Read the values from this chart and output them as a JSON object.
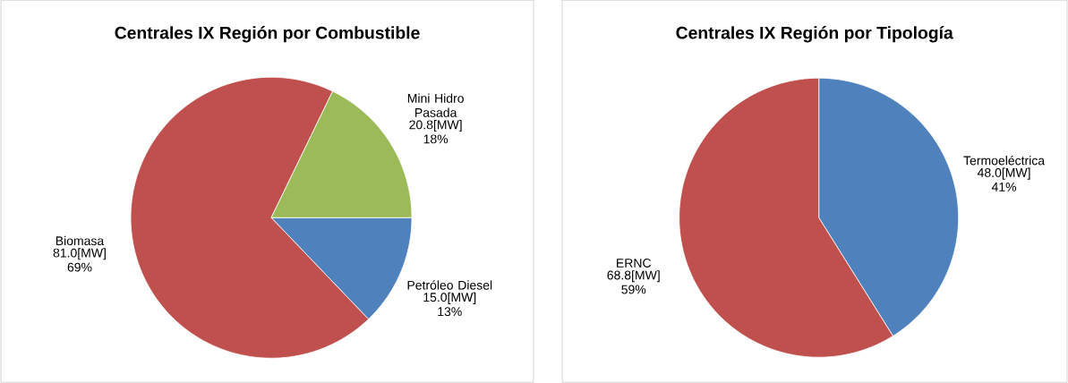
{
  "chart_data": [
    {
      "type": "pie",
      "title": "Centrales IX Región por Combustible",
      "categories": [
        "Petróleo Diesel",
        "Biomasa",
        "Mini Hidro Pasada"
      ],
      "values": [
        15.0,
        81.0,
        20.8
      ],
      "colors": [
        "#4f81bd",
        "#c0504d",
        "#9bbb59"
      ],
      "value_labels": [
        "15.0[MW] 13%",
        "81.0[MW] 69%",
        "20.8[MW] 18%"
      ]
    },
    {
      "type": "pie",
      "title": "Centrales IX Región por Tipología",
      "categories": [
        "Termoeléctrica",
        "ERNC"
      ],
      "values": [
        48.0,
        68.8
      ],
      "colors": [
        "#4f81bd",
        "#c0504d"
      ],
      "value_labels": [
        "48.0[MW] 41%",
        "68.8[MW] 59%"
      ]
    }
  ]
}
